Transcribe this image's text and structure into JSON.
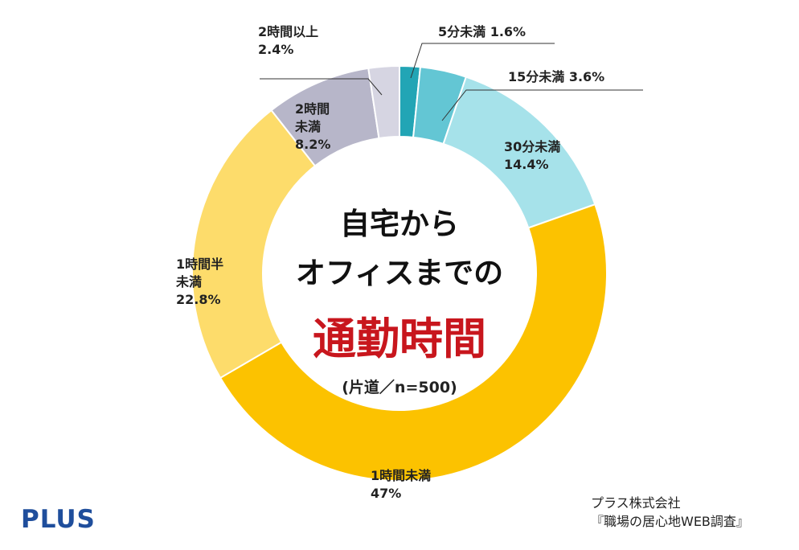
{
  "chart_data": {
    "type": "pie",
    "title_lines": [
      "自宅から",
      "オフィスまでの"
    ],
    "title_accent": "通勤時間",
    "subtitle": "(片道／n=500)",
    "slices": [
      {
        "label_lines": [
          "5分未満 1.6%"
        ],
        "value": 1.6,
        "color": "#22a5b5"
      },
      {
        "label_lines": [
          "15分未満 3.6%"
        ],
        "value": 3.6,
        "color": "#63c6d4"
      },
      {
        "label_lines": [
          "30分未満",
          "14.4%"
        ],
        "value": 14.4,
        "color": "#a6e2ea"
      },
      {
        "label_lines": [
          "1時間未満",
          "47%"
        ],
        "value": 47,
        "color": "#fcc200"
      },
      {
        "label_lines": [
          "1時間半",
          "未満",
          "22.8%"
        ],
        "value": 22.8,
        "color": "#fddc6b"
      },
      {
        "label_lines": [
          "2時間",
          "未満",
          "8.2%"
        ],
        "value": 8.2,
        "color": "#b7b6c9"
      },
      {
        "label_lines": [
          "2時間以上",
          "2.4%"
        ],
        "value": 2.4,
        "color": "#d6d5e2"
      }
    ]
  },
  "accent_color": "#c8161d",
  "brand": {
    "logo": "PLUS",
    "logo_color": "#1f4e9c"
  },
  "source": {
    "company": "プラス株式会社",
    "survey": "『職場の居心地WEB調査』"
  }
}
